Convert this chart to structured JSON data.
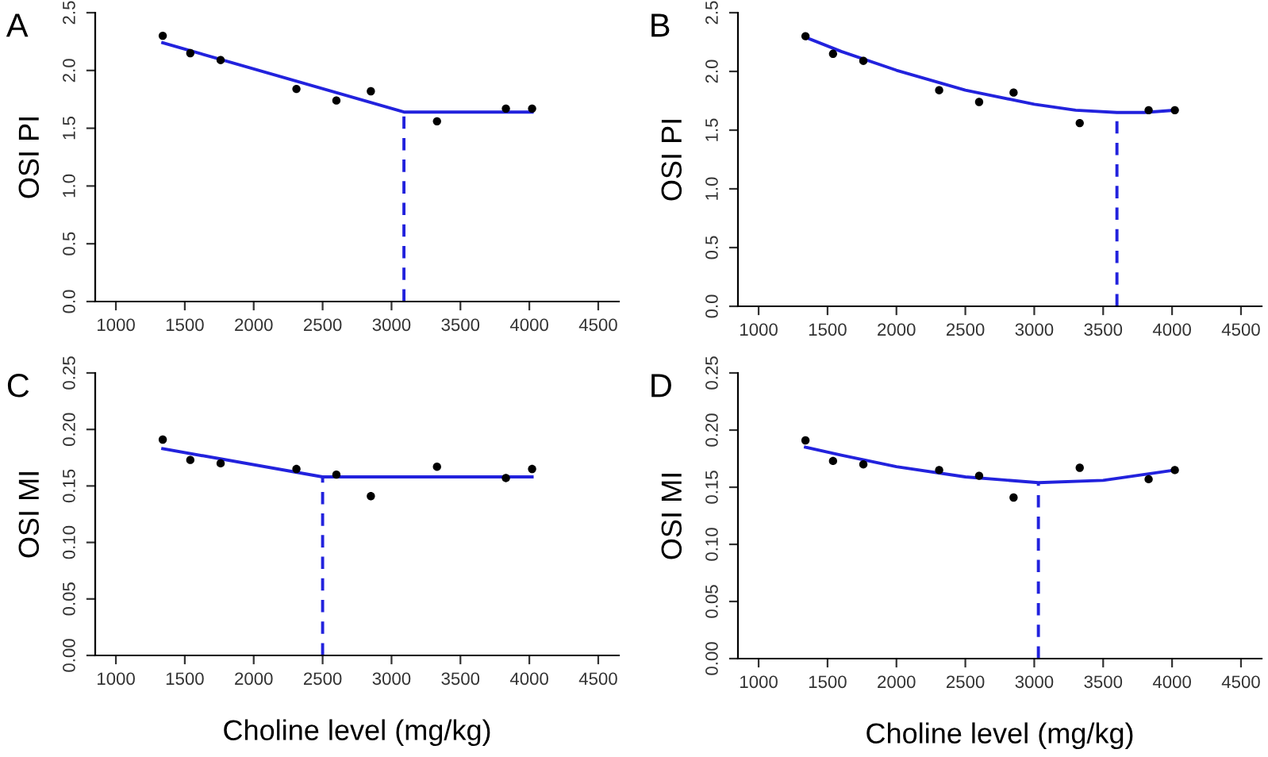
{
  "chart_data": [
    {
      "type": "scatter",
      "title": "A",
      "ylabel": "OSI PI",
      "xlim": [
        850,
        4650
      ],
      "ylim": [
        0,
        2.5
      ],
      "xticks": [
        1000,
        1500,
        2000,
        2500,
        3000,
        3500,
        4000,
        4500
      ],
      "yticks": [
        {
          "value": 0,
          "label": "0.0"
        },
        0.5,
        {
          "value": 1,
          "label": "1.0"
        },
        1.5,
        {
          "value": 2,
          "label": "2.0"
        },
        2.5
      ],
      "grid": false,
      "series": [
        {
          "color": "#000000",
          "marker": "circle",
          "x": [
            1340,
            1540,
            1760,
            2310,
            2600,
            2850,
            3330,
            3830,
            4020
          ],
          "values": [
            2.3,
            2.15,
            2.09,
            1.84,
            1.74,
            1.82,
            1.56,
            1.67,
            1.67
          ]
        },
        {
          "type": "line",
          "color": "#2222dd",
          "line_style": "solid",
          "x": [
            1340,
            3090,
            4020
          ],
          "values": [
            2.24,
            1.64,
            1.64
          ]
        },
        {
          "type": "line",
          "color": "#2222dd",
          "line_style": "dashed",
          "x": [
            3090,
            3090
          ],
          "values": [
            0,
            1.64
          ]
        }
      ]
    },
    {
      "type": "scatter",
      "title": "B",
      "ylabel": "OSI PI",
      "xlim": [
        850,
        4650
      ],
      "ylim": [
        0,
        2.5
      ],
      "xticks": [
        1000,
        1500,
        2000,
        2500,
        3000,
        3500,
        4000,
        4500
      ],
      "yticks": [
        {
          "value": 0,
          "label": "0.0"
        },
        0.5,
        {
          "value": 1,
          "label": "1.0"
        },
        1.5,
        {
          "value": 2,
          "label": "2.0"
        },
        2.5
      ],
      "grid": false,
      "series": [
        {
          "color": "#000000",
          "marker": "circle",
          "x": [
            1340,
            1540,
            1760,
            2310,
            2600,
            2850,
            3330,
            3830,
            4020
          ],
          "values": [
            2.3,
            2.15,
            2.09,
            1.84,
            1.74,
            1.82,
            1.56,
            1.67,
            1.67
          ]
        },
        {
          "type": "line",
          "color": "#2222dd",
          "line_style": "solid",
          "x": [
            1340,
            1600,
            2000,
            2500,
            3000,
            3300,
            3600,
            3800,
            4020
          ],
          "values": [
            2.29,
            2.17,
            2.01,
            1.84,
            1.72,
            1.67,
            1.65,
            1.65,
            1.67
          ]
        },
        {
          "type": "line",
          "color": "#2222dd",
          "line_style": "dashed",
          "x": [
            3600,
            3600
          ],
          "values": [
            0,
            1.65
          ]
        }
      ]
    },
    {
      "type": "scatter",
      "title": "C",
      "xlabel": "Choline level (mg/kg)",
      "ylabel": "OSI MI",
      "xlim": [
        850,
        4650
      ],
      "ylim": [
        0,
        0.25
      ],
      "xticks": [
        1000,
        1500,
        2000,
        2500,
        3000,
        3500,
        4000,
        4500
      ],
      "yticks": [
        {
          "value": 0.0,
          "label": "0.00"
        },
        0.05,
        {
          "value": 0.1,
          "label": "0.10"
        },
        0.15,
        {
          "value": 0.2,
          "label": "0.20"
        },
        0.25
      ],
      "grid": false,
      "series": [
        {
          "color": "#000000",
          "marker": "circle",
          "x": [
            1340,
            1540,
            1760,
            2310,
            2600,
            2850,
            3330,
            3830,
            4020
          ],
          "values": [
            0.191,
            0.173,
            0.17,
            0.165,
            0.16,
            0.141,
            0.167,
            0.157,
            0.165
          ]
        },
        {
          "type": "line",
          "color": "#2222dd",
          "line_style": "solid",
          "x": [
            1340,
            2500,
            4020
          ],
          "values": [
            0.183,
            0.158,
            0.158
          ]
        },
        {
          "type": "line",
          "color": "#2222dd",
          "line_style": "dashed",
          "x": [
            2500,
            2500
          ],
          "values": [
            0,
            0.158
          ]
        }
      ]
    },
    {
      "type": "scatter",
      "title": "D",
      "xlabel": "Choline level (mg/kg)",
      "ylabel": "OSI MI",
      "xlim": [
        850,
        4650
      ],
      "ylim": [
        0,
        0.25
      ],
      "xticks": [
        1000,
        1500,
        2000,
        2500,
        3000,
        3500,
        4000,
        4500
      ],
      "yticks": [
        {
          "value": 0.0,
          "label": "0.00"
        },
        0.05,
        {
          "value": 0.1,
          "label": "0.10"
        },
        0.15,
        {
          "value": 0.2,
          "label": "0.20"
        },
        0.25
      ],
      "grid": false,
      "series": [
        {
          "color": "#000000",
          "marker": "circle",
          "x": [
            1340,
            1540,
            1760,
            2310,
            2600,
            2850,
            3330,
            3830,
            4020
          ],
          "values": [
            0.191,
            0.173,
            0.17,
            0.165,
            0.16,
            0.141,
            0.167,
            0.157,
            0.165
          ]
        },
        {
          "type": "line",
          "color": "#2222dd",
          "line_style": "solid",
          "x": [
            1340,
            1600,
            2000,
            2500,
            3030,
            3500,
            4020
          ],
          "values": [
            0.185,
            0.178,
            0.168,
            0.159,
            0.154,
            0.156,
            0.165
          ]
        },
        {
          "type": "line",
          "color": "#2222dd",
          "line_style": "dashed",
          "x": [
            3030,
            3030
          ],
          "values": [
            0,
            0.154
          ]
        }
      ]
    }
  ]
}
